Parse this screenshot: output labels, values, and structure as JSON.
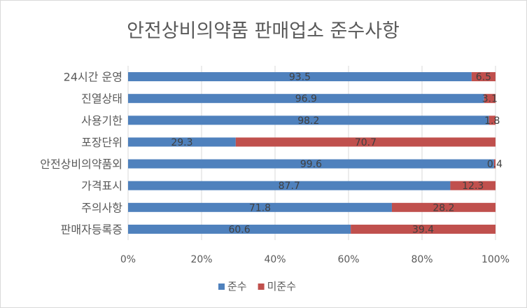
{
  "chart_data": {
    "type": "bar",
    "orientation": "horizontal",
    "stacked": true,
    "percent_stacked": true,
    "title": "안전상비의약품 판매업소 준수사항",
    "categories": [
      "24시간 운영",
      "진열상태",
      "사용기한",
      "포장단위",
      "안전상비의약품외",
      "가격표시",
      "주의사항",
      "판매자등록증"
    ],
    "series": [
      {
        "name": "준수",
        "color": "#4F81BD",
        "values": [
          93.5,
          96.9,
          98.2,
          29.3,
          99.6,
          87.7,
          71.8,
          60.6
        ]
      },
      {
        "name": "미준수",
        "color": "#C0504D",
        "values": [
          6.5,
          3.1,
          1.8,
          70.7,
          0.4,
          12.3,
          28.2,
          39.4
        ]
      }
    ],
    "xlim": [
      0,
      100
    ],
    "x_ticks": [
      "0%",
      "20%",
      "40%",
      "60%",
      "80%",
      "100%"
    ],
    "grid": true,
    "legend": "bottom"
  }
}
